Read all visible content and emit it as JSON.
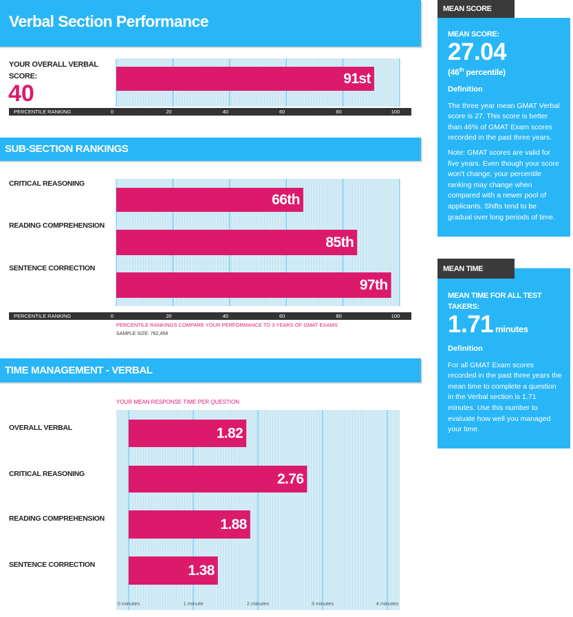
{
  "header": {
    "title": "Verbal Section Performance"
  },
  "overall": {
    "label": "YOUR OVERALL VERBAL SCORE:",
    "score": 40
  },
  "sections": [
    "SUB-SECTION RANKINGS",
    "TIME MANAGEMENT - VERBAL"
  ],
  "chart_data": [
    {
      "type": "bar",
      "orientation": "horizontal",
      "categories": [
        null
      ],
      "values": [
        91
      ],
      "value_labels": [
        "91st"
      ],
      "color": "#dc1a6c",
      "xlabel": "PERCENTILE RANKING",
      "xlim": [
        0,
        100
      ],
      "xticks": [
        0,
        20,
        40,
        60,
        80,
        100
      ],
      "grid": true
    },
    {
      "type": "bar",
      "orientation": "horizontal",
      "categories": [
        "CRITICAL REASONING",
        "READING COMPREHENSION",
        "SENTENCE CORRECTION"
      ],
      "values": [
        66,
        85,
        97
      ],
      "value_labels": [
        "66th",
        "85th",
        "97th"
      ],
      "color": "#dc1a6c",
      "xlabel": "PERCENTILE RANKING",
      "xlim": [
        0,
        100
      ],
      "xticks": [
        0,
        20,
        40,
        60,
        80,
        100
      ],
      "grid": true,
      "note": "PERCENTILE RANKINGS COMPARE YOUR PERFORMANCE TO 3 YEARS OF GMAT EXAMS",
      "sample_size": "SAMPLE SIZE: 782,458"
    },
    {
      "type": "bar",
      "orientation": "horizontal",
      "title": "YOUR MEAN RESPONSE TIME PER QUESTION",
      "categories": [
        "OVERALL VERBAL",
        "CRITICAL REASONING",
        "READING COMPREHENSION",
        "SENTENCE CORRECTION"
      ],
      "values": [
        1.82,
        2.76,
        1.88,
        1.38
      ],
      "color": "#dc1a6c",
      "xlim": [
        0,
        4
      ],
      "xticks": [
        {
          "value": 0,
          "label": "0 minutes"
        },
        {
          "value": 1,
          "label": "1 minute"
        },
        {
          "value": 2,
          "label": "2 minutes"
        },
        {
          "value": 3,
          "label": "3 minutes"
        },
        {
          "value": 4,
          "label": "4 minutes"
        }
      ],
      "grid": true
    }
  ],
  "sidebar": [
    {
      "tab": "MEAN SCORE",
      "heading": "MEAN SCORE:",
      "value": 27.04,
      "percentile": [
        "(46",
        "th",
        " percentile)"
      ],
      "definition_title": "Definition",
      "paragraphs": [
        "The three year mean GMAT Verbal score is 27. This score is better than 46% of GMAT Exam scores recorded in the past three years.",
        "Note: GMAT scores are valid for five years. Even though your score won't change, your percentile ranking may change when compared with a newer pool of applicants. Shifts tend to be gradual over long periods of time."
      ]
    },
    {
      "tab": "MEAN TIME",
      "heading": "MEAN TIME FOR ALL TEST TAKERS:",
      "value": 1.71,
      "unit": "minutes",
      "definition_title": "Definition",
      "paragraphs": [
        "For all GMAT Exam scores recorded in the past three years the mean time to complete a question in the Verbal section is 1.71 minutes. Use this number to evaluate how well you managed your time."
      ]
    }
  ]
}
